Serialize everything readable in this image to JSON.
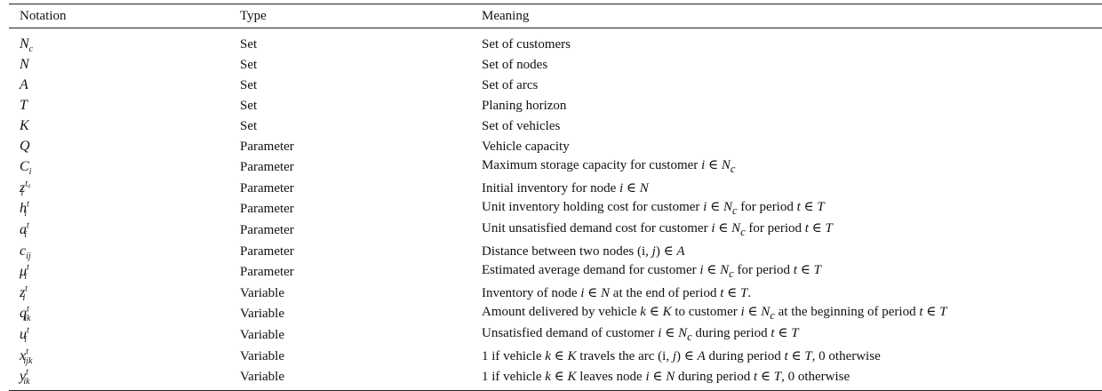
{
  "table": {
    "headers": {
      "notation": "Notation",
      "type": "Type",
      "meaning": "Meaning"
    },
    "rows": [
      {
        "base": "N",
        "sub": "c",
        "sup": "",
        "type": "Set",
        "meaning": "Set of customers"
      },
      {
        "base": "N",
        "sub": "",
        "sup": "",
        "type": "Set",
        "meaning": "Set of nodes"
      },
      {
        "base": "A",
        "sub": "",
        "sup": "",
        "type": "Set",
        "meaning": "Set of arcs"
      },
      {
        "base": "T",
        "sub": "",
        "sup": "",
        "type": "Set",
        "meaning": "Planing horizon"
      },
      {
        "base": "K",
        "sub": "",
        "sup": "",
        "type": "Set",
        "meaning": "Set of vehicles"
      },
      {
        "base": "Q",
        "sub": "",
        "sup": "",
        "type": "Parameter",
        "meaning": "Vehicle capacity"
      },
      {
        "base": "C",
        "sub": "i",
        "sup": "",
        "type": "Parameter",
        "meaning": "Maximum storage capacity for customer i ∈ N_c"
      },
      {
        "base": "z",
        "sub": "i",
        "sup": "t₀",
        "type": "Parameter",
        "meaning": "Initial inventory for node i ∈ N"
      },
      {
        "base": "h",
        "sub": "i",
        "sup": "t",
        "type": "Parameter",
        "meaning": "Unit inventory holding cost for customer i ∈ N_c for period t ∈ T"
      },
      {
        "base": "a",
        "sub": "i",
        "sup": "t",
        "type": "Parameter",
        "meaning": "Unit unsatisfied demand cost for customer i ∈ N_c for period t ∈ T"
      },
      {
        "base": "c",
        "sub": "ij",
        "sup": "",
        "type": "Parameter",
        "meaning": "Distance between two nodes (i, j) ∈ A"
      },
      {
        "base": "μ",
        "sub": "i",
        "sup": "t",
        "type": "Parameter",
        "meaning": "Estimated average demand for customer i ∈ N_c for period t ∈ T"
      },
      {
        "base": "z",
        "sub": "i",
        "sup": "t",
        "type": "Variable",
        "meaning": "Inventory of node i ∈ N at the end of period t ∈ T."
      },
      {
        "base": "q",
        "sub": "ik",
        "sup": "t",
        "type": "Variable",
        "meaning": "Amount delivered by vehicle k ∈ K to customer i ∈ N_c at the beginning of period t ∈ T"
      },
      {
        "base": "u",
        "sub": "i",
        "sup": "t",
        "type": "Variable",
        "meaning": "Unsatisfied demand of customer i ∈ N_c during period t ∈ T"
      },
      {
        "base": "x",
        "sub": "ijk",
        "sup": "t",
        "type": "Variable",
        "meaning": "1 if vehicle k ∈ K travels the arc (i, j) ∈ A during period t ∈ T, 0 otherwise"
      },
      {
        "base": "y",
        "sub": "ik",
        "sup": "t",
        "type": "Variable",
        "meaning": "1 if vehicle k ∈ K leaves node i ∈ N during period t ∈ T, 0 otherwise"
      }
    ]
  }
}
